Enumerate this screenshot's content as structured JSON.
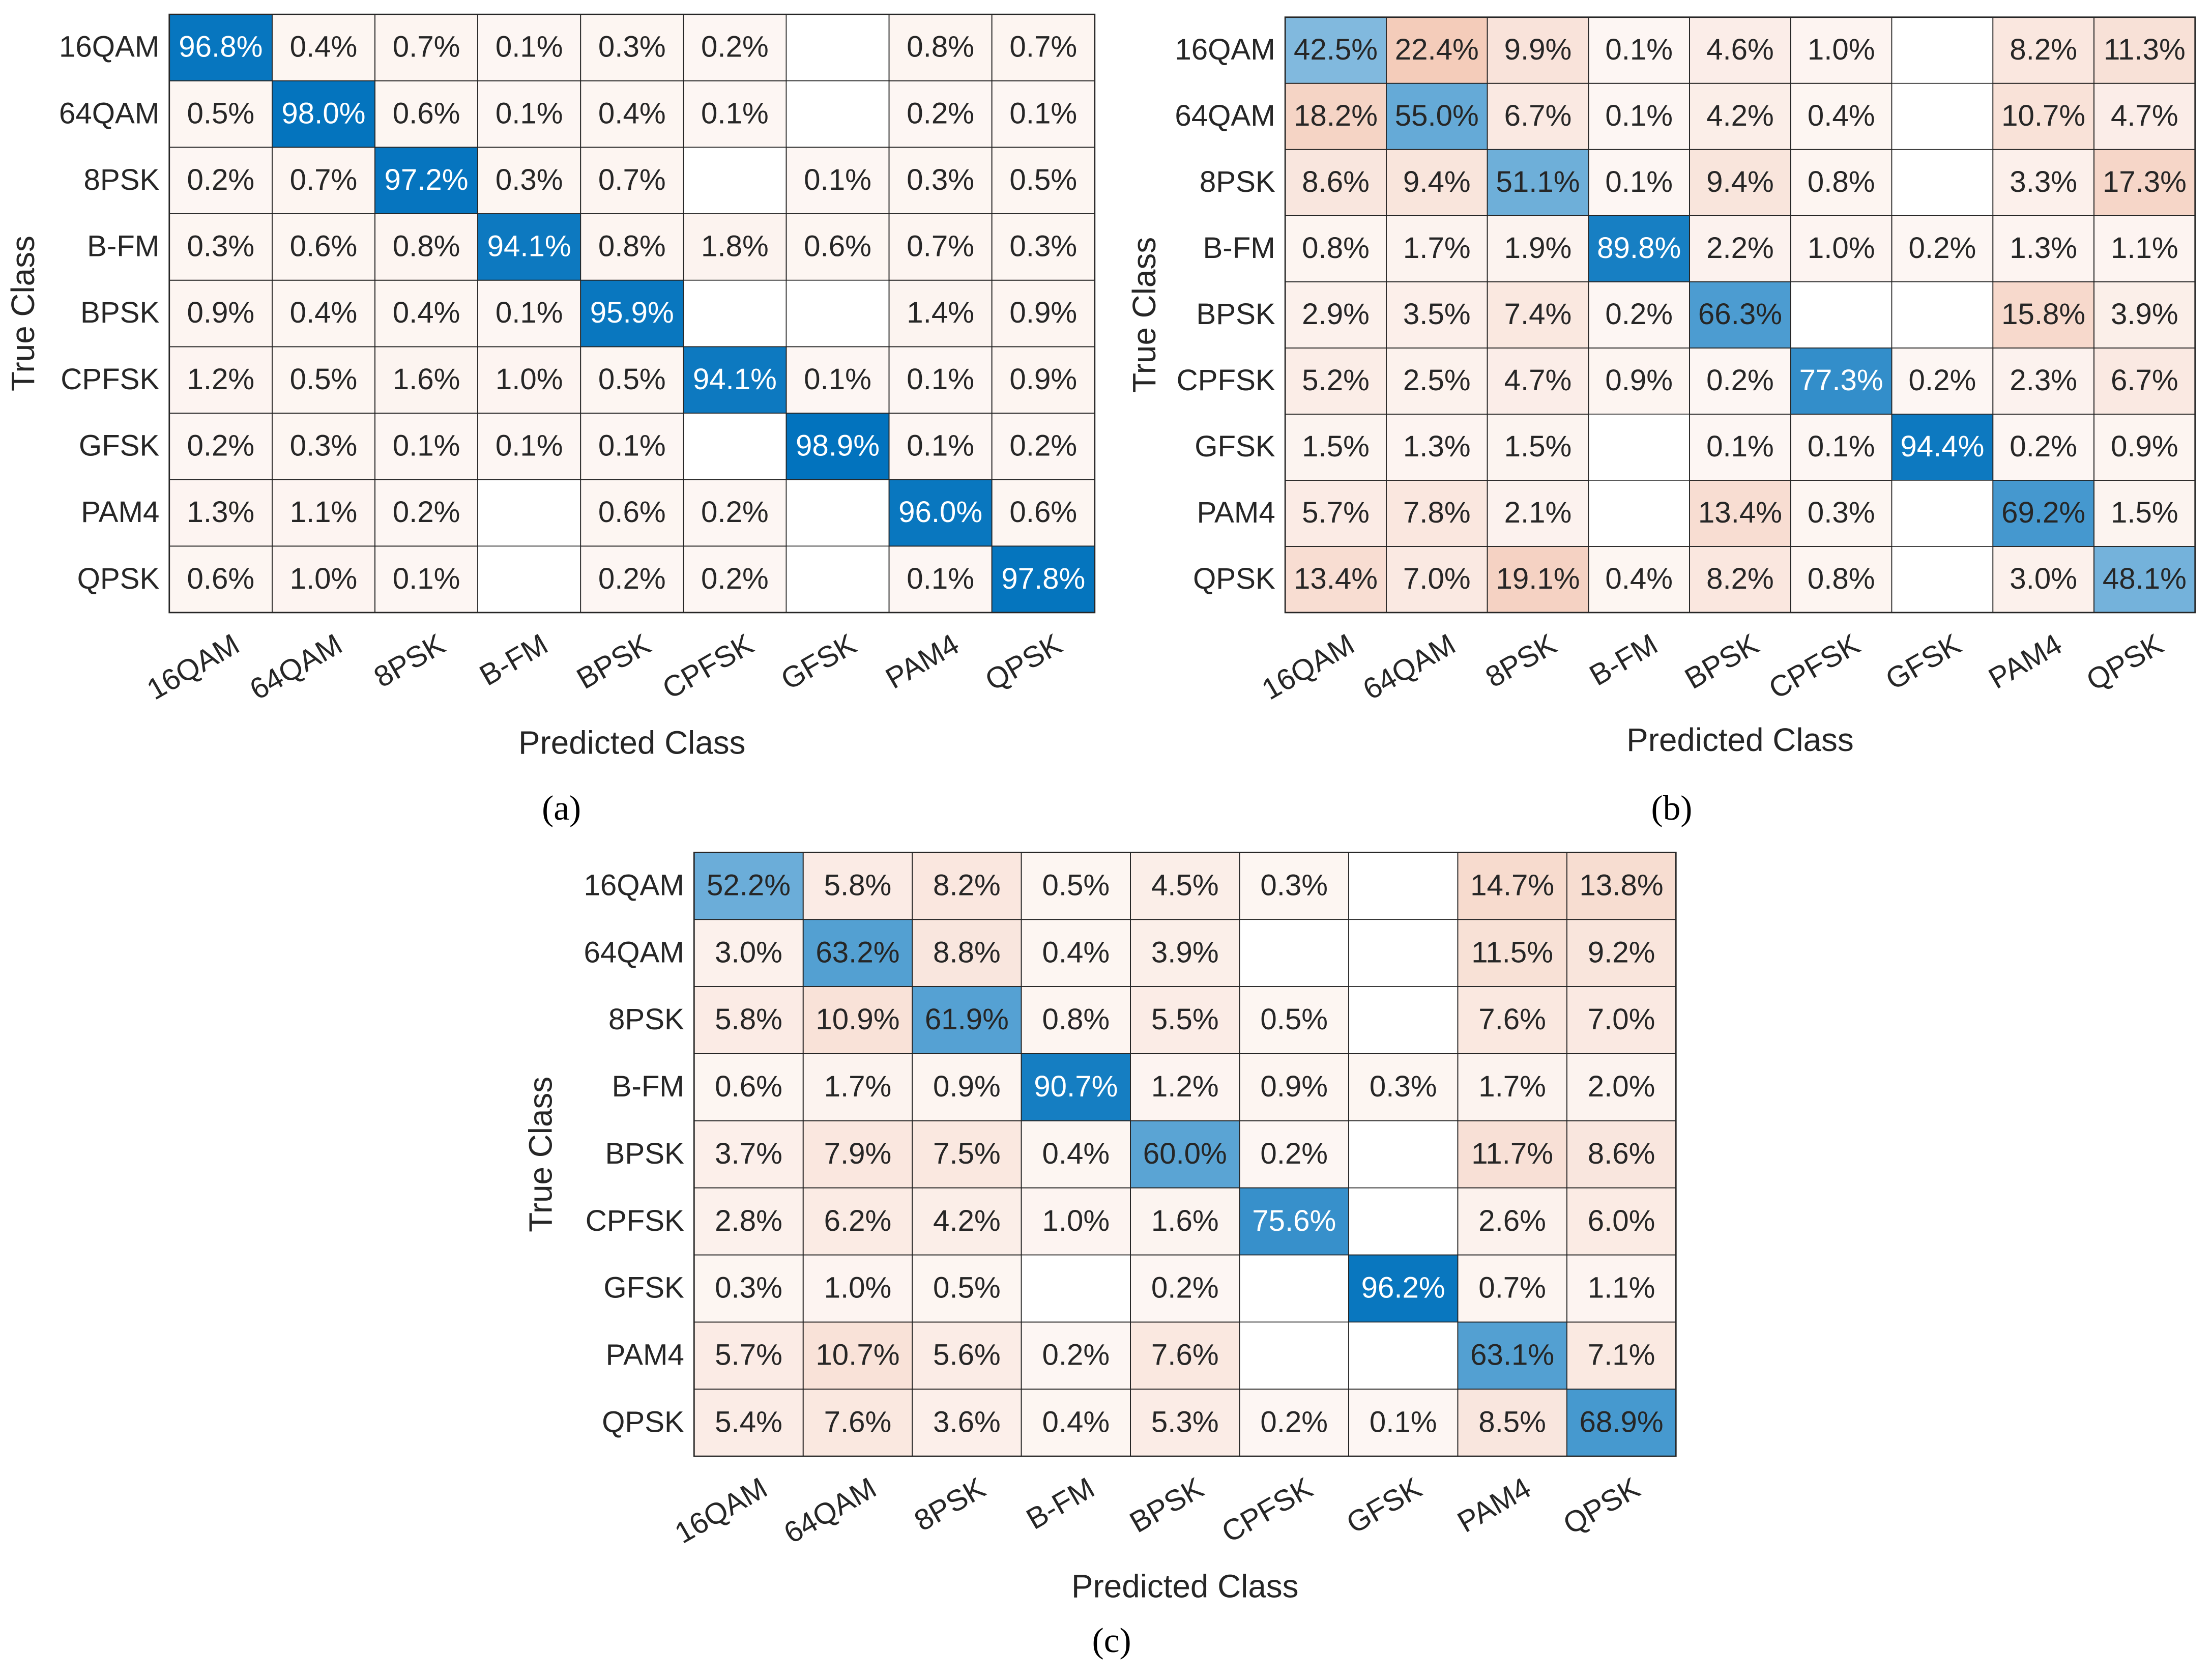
{
  "chart_data": [
    {
      "type": "heatmap",
      "label": "(a)",
      "xlabel": "Predicted Class",
      "ylabel": "True Class",
      "x_categories": [
        "16QAM",
        "64QAM",
        "8PSK",
        "B-FM",
        "BPSK",
        "CPFSK",
        "GFSK",
        "PAM4",
        "QPSK"
      ],
      "y_categories": [
        "16QAM",
        "64QAM",
        "8PSK",
        "B-FM",
        "BPSK",
        "CPFSK",
        "GFSK",
        "PAM4",
        "QPSK"
      ],
      "diagonal_color": "#0072bd",
      "off_diagonal_color": "#d95319",
      "values": [
        [
          96.8,
          0.4,
          0.7,
          0.1,
          0.3,
          0.2,
          null,
          0.8,
          0.7
        ],
        [
          0.5,
          98.0,
          0.6,
          0.1,
          0.4,
          0.1,
          null,
          0.2,
          0.1
        ],
        [
          0.2,
          0.7,
          97.2,
          0.3,
          0.7,
          null,
          0.1,
          0.3,
          0.5
        ],
        [
          0.3,
          0.6,
          0.8,
          94.1,
          0.8,
          1.8,
          0.6,
          0.7,
          0.3
        ],
        [
          0.9,
          0.4,
          0.4,
          0.1,
          95.9,
          null,
          null,
          1.4,
          0.9
        ],
        [
          1.2,
          0.5,
          1.6,
          1.0,
          0.5,
          94.1,
          0.1,
          0.1,
          0.9
        ],
        [
          0.2,
          0.3,
          0.1,
          0.1,
          0.1,
          null,
          98.9,
          0.1,
          0.2
        ],
        [
          1.3,
          1.1,
          0.2,
          null,
          0.6,
          0.2,
          null,
          96.0,
          0.6
        ],
        [
          0.6,
          1.0,
          0.1,
          null,
          0.2,
          0.2,
          null,
          0.1,
          97.8
        ]
      ],
      "value_labels": [
        [
          "96.8%",
          "0.4%",
          "0.7%",
          "0.1%",
          "0.3%",
          "0.2%",
          null,
          "0.8%",
          "0.7%"
        ],
        [
          "0.5%",
          "98.0%",
          "0.6%",
          "0.1%",
          "0.4%",
          "0.1%",
          null,
          "0.2%",
          "0.1%"
        ],
        [
          "0.2%",
          "0.7%",
          "97.2%",
          "0.3%",
          "0.7%",
          null,
          "0.1%",
          "0.3%",
          "0.5%"
        ],
        [
          "0.3%",
          "0.6%",
          "0.8%",
          "94.1%",
          "0.8%",
          "1.8%",
          "0.6%",
          "0.7%",
          "0.3%"
        ],
        [
          "0.9%",
          "0.4%",
          "0.4%",
          "0.1%",
          "95.9%",
          null,
          null,
          "1.4%",
          "0.9%"
        ],
        [
          "1.2%",
          "0.5%",
          "1.6%",
          "1.0%",
          "0.5%",
          "94.1%",
          "0.1%",
          "0.1%",
          "0.9%"
        ],
        [
          "0.2%",
          "0.3%",
          "0.1%",
          "0.1%",
          "0.1%",
          null,
          "98.9%",
          "0.1%",
          "0.2%"
        ],
        [
          "1.3%",
          "1.1%",
          "0.2%",
          null,
          "0.6%",
          "0.2%",
          null,
          "96.0%",
          "0.6%"
        ],
        [
          "0.6%",
          "1.0%",
          "0.1%",
          null,
          "0.2%",
          "0.2%",
          null,
          "0.1%",
          "97.8%"
        ]
      ]
    },
    {
      "type": "heatmap",
      "label": "(b)",
      "xlabel": "Predicted Class",
      "ylabel": "True Class",
      "x_categories": [
        "16QAM",
        "64QAM",
        "8PSK",
        "B-FM",
        "BPSK",
        "CPFSK",
        "GFSK",
        "PAM4",
        "QPSK"
      ],
      "y_categories": [
        "16QAM",
        "64QAM",
        "8PSK",
        "B-FM",
        "BPSK",
        "CPFSK",
        "GFSK",
        "PAM4",
        "QPSK"
      ],
      "diagonal_color": "#0072bd",
      "off_diagonal_color": "#d95319",
      "values": [
        [
          42.5,
          22.4,
          9.9,
          0.1,
          4.6,
          1.0,
          null,
          8.2,
          11.3
        ],
        [
          18.2,
          55.0,
          6.7,
          0.1,
          4.2,
          0.4,
          null,
          10.7,
          4.7
        ],
        [
          8.6,
          9.4,
          51.1,
          0.1,
          9.4,
          0.8,
          null,
          3.3,
          17.3
        ],
        [
          0.8,
          1.7,
          1.9,
          89.8,
          2.2,
          1.0,
          0.2,
          1.3,
          1.1
        ],
        [
          2.9,
          3.5,
          7.4,
          0.2,
          66.3,
          null,
          null,
          15.8,
          3.9
        ],
        [
          5.2,
          2.5,
          4.7,
          0.9,
          0.2,
          77.3,
          0.2,
          2.3,
          6.7
        ],
        [
          1.5,
          1.3,
          1.5,
          null,
          0.1,
          0.1,
          94.4,
          0.2,
          0.9
        ],
        [
          5.7,
          7.8,
          2.1,
          null,
          13.4,
          0.3,
          null,
          69.2,
          1.5
        ],
        [
          13.4,
          7.0,
          19.1,
          0.4,
          8.2,
          0.8,
          null,
          3.0,
          48.1
        ]
      ],
      "value_labels": [
        [
          "42.5%",
          "22.4%",
          "9.9%",
          "0.1%",
          "4.6%",
          "1.0%",
          null,
          "8.2%",
          "11.3%"
        ],
        [
          "18.2%",
          "55.0%",
          "6.7%",
          "0.1%",
          "4.2%",
          "0.4%",
          null,
          "10.7%",
          "4.7%"
        ],
        [
          "8.6%",
          "9.4%",
          "51.1%",
          "0.1%",
          "9.4%",
          "0.8%",
          null,
          "3.3%",
          "17.3%"
        ],
        [
          "0.8%",
          "1.7%",
          "1.9%",
          "89.8%",
          "2.2%",
          "1.0%",
          "0.2%",
          "1.3%",
          "1.1%"
        ],
        [
          "2.9%",
          "3.5%",
          "7.4%",
          "0.2%",
          "66.3%",
          null,
          null,
          "15.8%",
          "3.9%"
        ],
        [
          "5.2%",
          "2.5%",
          "4.7%",
          "0.9%",
          "0.2%",
          "77.3%",
          "0.2%",
          "2.3%",
          "6.7%"
        ],
        [
          "1.5%",
          "1.3%",
          "1.5%",
          null,
          "0.1%",
          "0.1%",
          "94.4%",
          "0.2%",
          "0.9%"
        ],
        [
          "5.7%",
          "7.8%",
          "2.1%",
          null,
          "13.4%",
          "0.3%",
          null,
          "69.2%",
          "1.5%"
        ],
        [
          "13.4%",
          "7.0%",
          "19.1%",
          "0.4%",
          "8.2%",
          "0.8%",
          null,
          "3.0%",
          "48.1%"
        ]
      ]
    },
    {
      "type": "heatmap",
      "label": "(c)",
      "xlabel": "Predicted Class",
      "ylabel": "True Class",
      "x_categories": [
        "16QAM",
        "64QAM",
        "8PSK",
        "B-FM",
        "BPSK",
        "CPFSK",
        "GFSK",
        "PAM4",
        "QPSK"
      ],
      "y_categories": [
        "16QAM",
        "64QAM",
        "8PSK",
        "B-FM",
        "BPSK",
        "CPFSK",
        "GFSK",
        "PAM4",
        "QPSK"
      ],
      "diagonal_color": "#0072bd",
      "off_diagonal_color": "#d95319",
      "values": [
        [
          52.2,
          5.8,
          8.2,
          0.5,
          4.5,
          0.3,
          null,
          14.7,
          13.8
        ],
        [
          3.0,
          63.2,
          8.8,
          0.4,
          3.9,
          null,
          null,
          11.5,
          9.2
        ],
        [
          5.8,
          10.9,
          61.9,
          0.8,
          5.5,
          0.5,
          null,
          7.6,
          7.0
        ],
        [
          0.6,
          1.7,
          0.9,
          90.7,
          1.2,
          0.9,
          0.3,
          1.7,
          2.0
        ],
        [
          3.7,
          7.9,
          7.5,
          0.4,
          60.0,
          0.2,
          null,
          11.7,
          8.6
        ],
        [
          2.8,
          6.2,
          4.2,
          1.0,
          1.6,
          75.6,
          null,
          2.6,
          6.0
        ],
        [
          0.3,
          1.0,
          0.5,
          null,
          0.2,
          null,
          96.2,
          0.7,
          1.1
        ],
        [
          5.7,
          10.7,
          5.6,
          0.2,
          7.6,
          null,
          null,
          63.1,
          7.1
        ],
        [
          5.4,
          7.6,
          3.6,
          0.4,
          5.3,
          0.2,
          0.1,
          8.5,
          68.9
        ]
      ],
      "value_labels": [
        [
          "52.2%",
          "5.8%",
          "8.2%",
          "0.5%",
          "4.5%",
          "0.3%",
          null,
          "14.7%",
          "13.8%"
        ],
        [
          "3.0%",
          "63.2%",
          "8.8%",
          "0.4%",
          "3.9%",
          null,
          null,
          "11.5%",
          "9.2%"
        ],
        [
          "5.8%",
          "10.9%",
          "61.9%",
          "0.8%",
          "5.5%",
          "0.5%",
          null,
          "7.6%",
          "7.0%"
        ],
        [
          "0.6%",
          "1.7%",
          "0.9%",
          "90.7%",
          "1.2%",
          "0.9%",
          "0.3%",
          "1.7%",
          "2.0%"
        ],
        [
          "3.7%",
          "7.9%",
          "7.5%",
          "0.4%",
          "60.0%",
          "0.2%",
          null,
          "11.7%",
          "8.6%"
        ],
        [
          "2.8%",
          "6.2%",
          "4.2%",
          "1.0%",
          "1.6%",
          "75.6%",
          null,
          "2.6%",
          "6.0%"
        ],
        [
          "0.3%",
          "1.0%",
          "0.5%",
          null,
          "0.2%",
          null,
          "96.2%",
          "0.7%",
          "1.1%"
        ],
        [
          "5.7%",
          "10.7%",
          "5.6%",
          "0.2%",
          "7.6%",
          null,
          null,
          "63.1%",
          "7.1%"
        ],
        [
          "5.4%",
          "7.6%",
          "3.6%",
          "0.4%",
          "5.3%",
          "0.2%",
          "0.1%",
          "8.5%",
          "68.9%"
        ]
      ]
    }
  ]
}
